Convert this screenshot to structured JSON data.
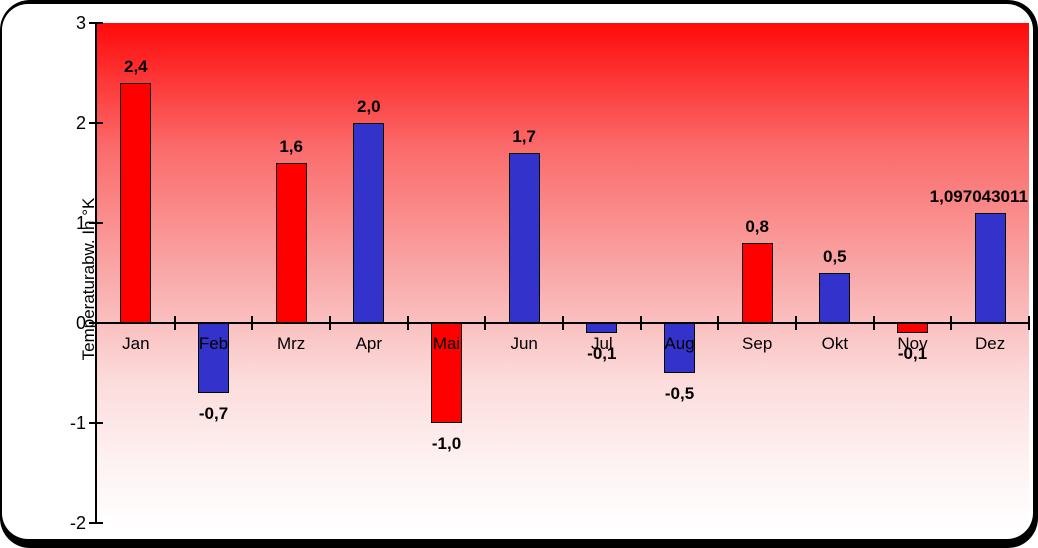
{
  "chart_data": {
    "type": "bar",
    "title": "",
    "xlabel": "",
    "ylabel": "Temperaturabw. In °K",
    "ylim": [
      -2,
      3
    ],
    "yticks": [
      3,
      2,
      1,
      0,
      -1,
      -2
    ],
    "grid": false,
    "legend": null,
    "plot_background": "red-to-white vertical gradient",
    "categories": [
      "Jan",
      "Feb",
      "Mrz",
      "Apr",
      "Mai",
      "Jun",
      "Jul",
      "Aug",
      "Sep",
      "Okt",
      "Nov",
      "Dez"
    ],
    "values": [
      2.4,
      -0.7,
      1.6,
      2.0,
      -1.0,
      1.7,
      -0.1,
      -0.5,
      0.8,
      0.5,
      -0.1,
      1.097043011
    ],
    "value_labels": [
      "2,4",
      "-0,7",
      "1,6",
      "2,0",
      "-1,0",
      "1,7",
      "-0,1",
      "-0,5",
      "0,8",
      "0,5",
      "-0,1",
      "1,097043011"
    ],
    "bar_colors": [
      "#ff0000",
      "#3333cc",
      "#ff0000",
      "#3333cc",
      "#ff0000",
      "#3333cc",
      "#3333cc",
      "#3333cc",
      "#ff0000",
      "#3333cc",
      "#ff0000",
      "#3333cc"
    ]
  },
  "colors": {
    "positive_red": "#ff0000",
    "bar_blue": "#3333cc",
    "frame_border": "#000000",
    "canvas_bg": "#ffffff",
    "gradient_top": "#ff0a0a",
    "gradient_bottom": "#fffefe"
  }
}
